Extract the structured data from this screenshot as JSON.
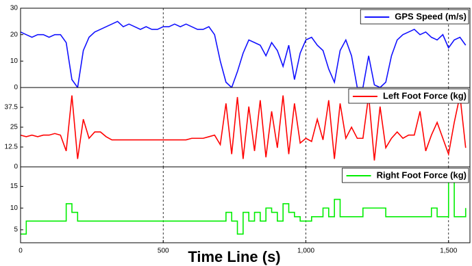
{
  "chart_data": [
    {
      "type": "line",
      "xlim": [
        0,
        1575
      ],
      "ylim": [
        0,
        30
      ],
      "yticks": [
        0,
        10,
        20,
        30
      ],
      "legend": "upper right",
      "x": [
        0,
        20,
        40,
        60,
        80,
        100,
        120,
        140,
        160,
        180,
        200,
        220,
        240,
        260,
        280,
        300,
        320,
        340,
        360,
        380,
        400,
        420,
        440,
        460,
        480,
        500,
        520,
        540,
        560,
        580,
        600,
        620,
        640,
        660,
        680,
        700,
        720,
        740,
        760,
        780,
        800,
        820,
        840,
        860,
        880,
        900,
        920,
        940,
        960,
        980,
        1000,
        1020,
        1040,
        1060,
        1080,
        1100,
        1120,
        1140,
        1160,
        1180,
        1200,
        1220,
        1240,
        1260,
        1280,
        1300,
        1320,
        1340,
        1360,
        1380,
        1400,
        1420,
        1440,
        1460,
        1480,
        1500,
        1520,
        1540,
        1560
      ],
      "series": [
        {
          "name": "GPS Speed (m/s)",
          "color": "#1010ff",
          "values": [
            21,
            20,
            19,
            20,
            20,
            19,
            20,
            20,
            17,
            3,
            0,
            14,
            19,
            21,
            22,
            23,
            24,
            25,
            23,
            24,
            23,
            22,
            23,
            22,
            22,
            23,
            23,
            24,
            23,
            24,
            23,
            22,
            22,
            23,
            20,
            10,
            2,
            0,
            6,
            13,
            18,
            17,
            16,
            12,
            17,
            14,
            8,
            16,
            3,
            13,
            18,
            19,
            16,
            14,
            7,
            2,
            14,
            18,
            12,
            0,
            0,
            12,
            1,
            0,
            2,
            12,
            18,
            20,
            21,
            22,
            20,
            21,
            19,
            18,
            20,
            15,
            18,
            19,
            16
          ]
        }
      ]
    },
    {
      "type": "line",
      "xlim": [
        0,
        1575
      ],
      "ylim": [
        0,
        50
      ],
      "yticks": [
        0,
        12.5,
        25,
        37.5
      ],
      "legend": "upper right",
      "x": [
        0,
        20,
        40,
        60,
        80,
        100,
        120,
        140,
        160,
        180,
        200,
        220,
        240,
        260,
        280,
        300,
        320,
        340,
        360,
        380,
        400,
        420,
        440,
        460,
        480,
        500,
        520,
        540,
        560,
        580,
        600,
        620,
        640,
        660,
        680,
        700,
        720,
        740,
        760,
        780,
        800,
        820,
        840,
        860,
        880,
        900,
        920,
        940,
        960,
        980,
        1000,
        1020,
        1040,
        1060,
        1080,
        1100,
        1120,
        1140,
        1160,
        1180,
        1200,
        1220,
        1240,
        1260,
        1280,
        1300,
        1320,
        1340,
        1360,
        1380,
        1400,
        1420,
        1440,
        1460,
        1480,
        1500,
        1520,
        1540,
        1560
      ],
      "series": [
        {
          "name": "Left Foot Force (kg)",
          "color": "#ff0000",
          "values": [
            20,
            19,
            20,
            19,
            20,
            20,
            21,
            20,
            10,
            45,
            5,
            30,
            18,
            22,
            22,
            19,
            17,
            17,
            17,
            17,
            17,
            17,
            17,
            17,
            17,
            17,
            17,
            17,
            17,
            17,
            18,
            18,
            18,
            19,
            20,
            14,
            40,
            8,
            44,
            5,
            38,
            10,
            42,
            6,
            35,
            12,
            45,
            8,
            40,
            15,
            18,
            16,
            30,
            17,
            42,
            5,
            40,
            18,
            25,
            18,
            18,
            45,
            4,
            38,
            12,
            18,
            22,
            18,
            20,
            20,
            35,
            10,
            20,
            28,
            18,
            8,
            28,
            45,
            12
          ]
        }
      ]
    },
    {
      "type": "line",
      "step": true,
      "xlim": [
        0,
        1575
      ],
      "ylim": [
        2,
        19.5
      ],
      "yticks": [
        5,
        10,
        15
      ],
      "legend": "upper right",
      "xticks": [
        0,
        500,
        {
          "value": 1000,
          "label": "1,000"
        },
        {
          "value": 1500,
          "label": "1,500"
        }
      ],
      "xlabel": "Time Line (s)",
      "x": [
        0,
        20,
        40,
        60,
        80,
        100,
        120,
        140,
        160,
        180,
        200,
        220,
        240,
        260,
        280,
        300,
        320,
        340,
        360,
        380,
        400,
        420,
        440,
        460,
        480,
        500,
        520,
        540,
        560,
        580,
        600,
        620,
        640,
        660,
        680,
        700,
        720,
        740,
        760,
        780,
        800,
        820,
        840,
        860,
        880,
        900,
        920,
        940,
        960,
        980,
        1000,
        1020,
        1040,
        1060,
        1080,
        1100,
        1120,
        1140,
        1160,
        1180,
        1200,
        1220,
        1240,
        1260,
        1280,
        1300,
        1320,
        1340,
        1360,
        1380,
        1400,
        1420,
        1440,
        1460,
        1480,
        1500,
        1520,
        1540,
        1560
      ],
      "series": [
        {
          "name": "Right Foot Force (kg)",
          "color": "#00ee00",
          "values": [
            4,
            7,
            7,
            7,
            7,
            7,
            7,
            7,
            11,
            9,
            7,
            7,
            7,
            7,
            7,
            7,
            7,
            7,
            7,
            7,
            7,
            7,
            7,
            7,
            7,
            7,
            7,
            7,
            7,
            7,
            7,
            7,
            7,
            7,
            7,
            7,
            9,
            7,
            4,
            9,
            7,
            9,
            7,
            10,
            9,
            7,
            11,
            9,
            8,
            7,
            7,
            8,
            8,
            10,
            8,
            12,
            8,
            8,
            8,
            8,
            10,
            10,
            10,
            10,
            8,
            8,
            8,
            8,
            8,
            8,
            8,
            8,
            10,
            8,
            8,
            16,
            8,
            8,
            10
          ]
        }
      ]
    }
  ]
}
